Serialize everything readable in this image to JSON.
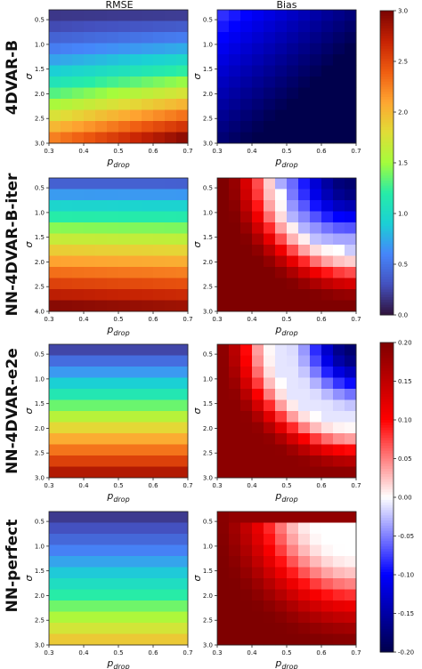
{
  "figure": {
    "column_titles": [
      "RMSE",
      "Bias"
    ],
    "row_labels": [
      "4DVAR-B",
      "NN-4DVAR-B-iter",
      "NN-4DVAR-e2e",
      "NN-perfect"
    ],
    "xlabel": "p_drop",
    "ylabel": "σ",
    "x_ticks": [
      "0.3",
      "0.4",
      "0.5",
      "0.6",
      "0.7"
    ],
    "y_ticks": [
      "0.5",
      "1.0",
      "1.5",
      "2.0",
      "2.5",
      "3.0"
    ],
    "colorbars": [
      {
        "name": "rmse",
        "colormap": "jet",
        "range": [
          0.0,
          3.0
        ],
        "ticks": [
          "3.0",
          "2.5",
          "2.0",
          "1.5",
          "1.0",
          "0.5",
          "0.0"
        ]
      },
      {
        "name": "bias",
        "colormap": "seismic",
        "range": [
          -0.2,
          0.2
        ],
        "ticks": [
          "0.20",
          "0.15",
          "0.10",
          "0.05",
          "0.00",
          "-0.05",
          "-0.10",
          "-0.15",
          "-0.20"
        ]
      }
    ]
  },
  "chart_data": [
    {
      "type": "heatmap",
      "row": "4DVAR-B",
      "column": "RMSE",
      "xlabel": "p_drop",
      "ylabel": "σ",
      "x_range": [
        0.3,
        0.7
      ],
      "y_range": [
        0.3,
        3.0
      ],
      "y_reversed": true,
      "grid_size": [
        12,
        12
      ],
      "colormap": "jet",
      "vmin": 0.0,
      "vmax": 3.0,
      "value_model": "≈0.2 at σ=0.3 rising to ≈3.0 at σ=3.0, p_drop=0.7",
      "z_min": 0.15,
      "z_max": 3.0
    },
    {
      "type": "heatmap",
      "row": "4DVAR-B",
      "column": "Bias",
      "xlabel": "p_drop",
      "ylabel": "σ",
      "x_range": [
        0.3,
        0.7
      ],
      "y_range": [
        0.3,
        3.0
      ],
      "y_reversed": true,
      "grid_size": [
        12,
        12
      ],
      "colormap": "seismic",
      "vmin": -0.2,
      "vmax": 0.2,
      "z_min": -0.2,
      "z_max": 0.0
    },
    {
      "type": "heatmap",
      "row": "NN-4DVAR-B-iter",
      "column": "RMSE",
      "xlabel": "p_drop",
      "ylabel": "σ",
      "x_range": [
        0.3,
        0.7
      ],
      "y_range": [
        0.3,
        4.0
      ],
      "y_reversed": true,
      "grid_size": [
        12,
        12
      ],
      "colormap": "jet",
      "vmin": 0.0,
      "vmax": 3.0,
      "z_min": 0.2,
      "z_max": 3.0
    },
    {
      "type": "heatmap",
      "row": "NN-4DVAR-B-iter",
      "column": "Bias",
      "xlabel": "p_drop",
      "ylabel": "σ",
      "x_range": [
        0.3,
        0.7
      ],
      "y_range": [
        0.3,
        3.0
      ],
      "y_reversed": true,
      "grid_size": [
        12,
        12
      ],
      "colormap": "seismic",
      "vmin": -0.2,
      "vmax": 0.2,
      "z_min": -0.15,
      "z_max": 0.2
    },
    {
      "type": "heatmap",
      "row": "NN-4DVAR-e2e",
      "column": "RMSE",
      "xlabel": "p_drop",
      "ylabel": "σ",
      "x_range": [
        0.3,
        0.7
      ],
      "y_range": [
        0.3,
        3.0
      ],
      "y_reversed": true,
      "grid_size": [
        12,
        12
      ],
      "colormap": "jet",
      "vmin": 0.0,
      "vmax": 3.0,
      "z_min": 0.15,
      "z_max": 3.0
    },
    {
      "type": "heatmap",
      "row": "NN-4DVAR-e2e",
      "column": "Bias",
      "xlabel": "p_drop",
      "ylabel": "σ",
      "x_range": [
        0.3,
        0.7
      ],
      "y_range": [
        0.3,
        3.0
      ],
      "y_reversed": true,
      "grid_size": [
        12,
        12
      ],
      "colormap": "seismic",
      "vmin": -0.2,
      "vmax": 0.2,
      "z_min": -0.18,
      "z_max": 0.2
    },
    {
      "type": "heatmap",
      "row": "NN-perfect",
      "column": "RMSE",
      "xlabel": "p_drop",
      "ylabel": "σ",
      "x_range": [
        0.3,
        0.7
      ],
      "y_range": [
        0.3,
        3.0
      ],
      "y_reversed": true,
      "grid_size": [
        12,
        12
      ],
      "colormap": "jet",
      "vmin": 0.0,
      "vmax": 3.0,
      "z_min": 0.15,
      "z_max": 2.1
    },
    {
      "type": "heatmap",
      "row": "NN-perfect",
      "column": "Bias",
      "xlabel": "p_drop",
      "ylabel": "σ",
      "x_range": [
        0.3,
        0.7
      ],
      "y_range": [
        0.3,
        3.0
      ],
      "y_reversed": true,
      "grid_size": [
        12,
        12
      ],
      "colormap": "seismic",
      "vmin": -0.2,
      "vmax": 0.2,
      "z_min": 0.0,
      "z_max": 0.2
    }
  ]
}
